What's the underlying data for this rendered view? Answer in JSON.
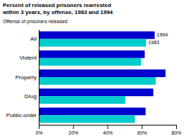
{
  "chart_data": {
    "type": "bar",
    "orientation": "horizontal",
    "title": "Percent of released prisoners rearrested\nwithin 3 years, by offense, 1983 and 1994",
    "subtitle": "Offense of prisoners released",
    "categories": [
      "All",
      "Violent",
      "Property",
      "Drug",
      "Public-order"
    ],
    "series": [
      {
        "name": "1994",
        "color": "#0000cc",
        "values": [
          67.5,
          61.7,
          73.8,
          66.7,
          62.2
        ]
      },
      {
        "name": "1983",
        "color": "#00cccc",
        "values": [
          62.5,
          59.6,
          68.1,
          50.4,
          56.0
        ]
      }
    ],
    "xlim": [
      0,
      80
    ],
    "xticks": [
      {
        "value": 0,
        "label": "0%"
      },
      {
        "value": 20,
        "label": "20%"
      },
      {
        "value": 40,
        "label": "40%"
      },
      {
        "value": 60,
        "label": "60%"
      },
      {
        "value": 80,
        "label": "80%"
      }
    ],
    "grid": false
  }
}
